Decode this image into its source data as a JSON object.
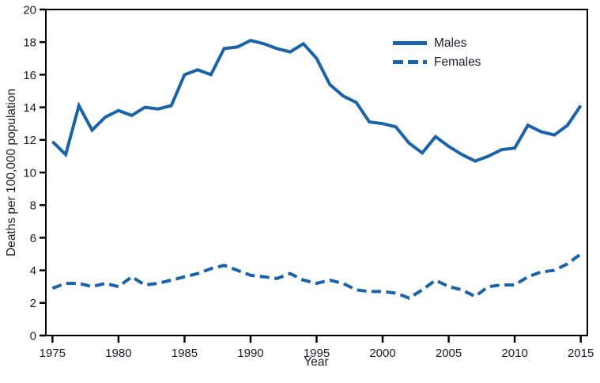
{
  "chart_data": {
    "type": "line",
    "title": "",
    "xlabel": "Year",
    "ylabel": "Deaths per 100,000 population",
    "xlim": [
      1974.5,
      2015.5
    ],
    "ylim": [
      0,
      20
    ],
    "xticks": [
      1975,
      1980,
      1985,
      1990,
      1995,
      2000,
      2005,
      2010,
      2015
    ],
    "yticks": [
      0,
      2,
      4,
      6,
      8,
      10,
      12,
      14,
      16,
      18,
      20
    ],
    "grid": false,
    "legend_position": "inside-upper-right",
    "line_color": "#1b63a9",
    "axis_color": "#000000",
    "text_color": "#1b1d2b",
    "x": [
      1975,
      1976,
      1977,
      1978,
      1979,
      1980,
      1981,
      1982,
      1983,
      1984,
      1985,
      1986,
      1987,
      1988,
      1989,
      1990,
      1991,
      1992,
      1993,
      1994,
      1995,
      1996,
      1997,
      1998,
      1999,
      2000,
      2001,
      2002,
      2003,
      2004,
      2005,
      2006,
      2007,
      2008,
      2009,
      2010,
      2011,
      2012,
      2013,
      2014,
      2015
    ],
    "series": [
      {
        "name": "Males",
        "style": "solid",
        "values": [
          11.9,
          11.1,
          14.1,
          12.6,
          13.4,
          13.8,
          13.5,
          14.0,
          13.9,
          14.1,
          16.0,
          16.3,
          16.0,
          17.6,
          17.7,
          18.1,
          17.9,
          17.6,
          17.4,
          17.9,
          17.0,
          15.4,
          14.7,
          14.3,
          13.1,
          13.0,
          12.8,
          11.8,
          11.2,
          12.2,
          11.6,
          11.1,
          10.7,
          11.0,
          11.4,
          11.5,
          12.9,
          12.5,
          12.3,
          12.9,
          14.1
        ]
      },
      {
        "name": "Females",
        "style": "dashed",
        "values": [
          2.9,
          3.2,
          3.2,
          3.0,
          3.2,
          3.0,
          3.6,
          3.1,
          3.2,
          3.4,
          3.6,
          3.8,
          4.1,
          4.3,
          4.0,
          3.7,
          3.6,
          3.5,
          3.8,
          3.4,
          3.2,
          3.4,
          3.2,
          2.8,
          2.7,
          2.7,
          2.6,
          2.3,
          2.8,
          3.4,
          3.0,
          2.8,
          2.4,
          3.0,
          3.1,
          3.1,
          3.6,
          3.9,
          4.0,
          4.4,
          5.0
        ]
      }
    ]
  }
}
